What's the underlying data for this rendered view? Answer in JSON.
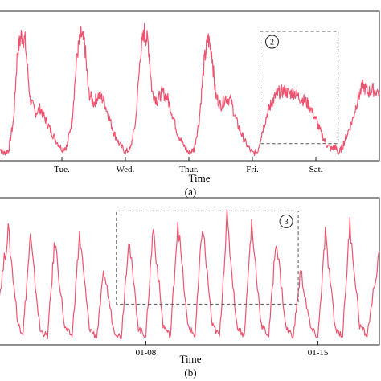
{
  "colors": {
    "series": "#ee5470",
    "frame": "#222222",
    "box": "#555555"
  },
  "chart_data": [
    {
      "type": "line",
      "panel_label": "(a)",
      "xlabel": "Time",
      "ylabel": "",
      "x_tick_labels": [
        "Tue.",
        "Wed.",
        "Thur.",
        "Fri.",
        "Sat."
      ],
      "x_range": [
        0.0,
        6.0
      ],
      "x_tick_positions": [
        1,
        2,
        3,
        4,
        5
      ],
      "ylim": [
        0,
        1
      ],
      "grid": false,
      "series": [
        {
          "x": [
            0.0,
            0.08,
            0.16,
            0.24,
            0.3,
            0.36,
            0.42,
            0.5,
            0.58,
            0.66,
            0.74,
            0.82,
            0.9,
            1.0,
            1.08,
            1.16,
            1.24,
            1.3,
            1.36,
            1.42,
            1.5,
            1.58,
            1.66,
            1.74,
            1.82,
            1.9,
            2.0,
            2.08,
            2.16,
            2.24,
            2.3,
            2.36,
            2.42,
            2.5,
            2.58,
            2.66,
            2.74,
            2.82,
            2.9,
            3.0,
            3.08,
            3.16,
            3.24,
            3.3,
            3.36,
            3.42,
            3.5,
            3.58,
            3.66,
            3.74,
            3.82,
            3.9,
            4.0,
            4.08,
            4.16,
            4.24,
            4.3,
            4.36,
            4.42,
            4.5,
            4.58,
            4.66,
            4.74,
            4.82,
            4.9,
            5.0,
            5.08,
            5.16,
            5.24,
            5.3,
            5.36,
            5.42,
            5.5,
            5.58,
            5.66,
            5.74,
            5.82,
            5.9,
            6.0
          ],
          "y": [
            0.1,
            0.05,
            0.07,
            0.3,
            0.8,
            0.92,
            0.88,
            0.45,
            0.35,
            0.38,
            0.3,
            0.22,
            0.15,
            0.08,
            0.1,
            0.3,
            0.78,
            0.93,
            0.85,
            0.5,
            0.42,
            0.48,
            0.44,
            0.32,
            0.2,
            0.12,
            0.06,
            0.08,
            0.28,
            0.8,
            0.95,
            0.86,
            0.5,
            0.44,
            0.5,
            0.46,
            0.34,
            0.2,
            0.12,
            0.05,
            0.08,
            0.28,
            0.72,
            0.9,
            0.8,
            0.48,
            0.4,
            0.46,
            0.44,
            0.3,
            0.2,
            0.12,
            0.05,
            0.06,
            0.22,
            0.35,
            0.42,
            0.47,
            0.5,
            0.51,
            0.49,
            0.5,
            0.46,
            0.44,
            0.4,
            0.3,
            0.2,
            0.12,
            0.08,
            0.1,
            0.05,
            0.1,
            0.2,
            0.3,
            0.45,
            0.55,
            0.5,
            0.52,
            0.5
          ]
        }
      ],
      "annotation_box": {
        "label": "2",
        "x_range": [
          4.12,
          5.35
        ],
        "y_range": [
          0.12,
          0.95
        ]
      }
    },
    {
      "type": "line",
      "panel_label": "(b)",
      "xlabel": "Time",
      "ylabel": "",
      "x_tick_labels": [
        "01-08",
        "01-15"
      ],
      "x_range": [
        0.0,
        15.5
      ],
      "x_tick_positions": [
        6,
        13
      ],
      "ylim": [
        0,
        1
      ],
      "grid": false,
      "series": [
        {
          "x": [
            0.0,
            0.4,
            0.8,
            1.0,
            1.3,
            1.7,
            2.0,
            2.3,
            2.7,
            3.0,
            3.3,
            3.7,
            4.0,
            4.3,
            4.7,
            5.0,
            5.3,
            5.7,
            6.0,
            6.3,
            6.7,
            7.0,
            7.3,
            7.7,
            8.0,
            8.3,
            8.7,
            9.0,
            9.3,
            9.7,
            10.0,
            10.3,
            10.7,
            11.0,
            11.3,
            11.7,
            12.0,
            12.3,
            12.7,
            13.0,
            13.3,
            13.7,
            14.0,
            14.3,
            14.7,
            15.0,
            15.5
          ],
          "y": [
            0.3,
            0.85,
            0.15,
            0.08,
            0.8,
            0.1,
            0.06,
            0.78,
            0.12,
            0.06,
            0.82,
            0.12,
            0.05,
            0.55,
            0.1,
            0.05,
            0.8,
            0.12,
            0.06,
            0.88,
            0.14,
            0.06,
            0.92,
            0.14,
            0.06,
            0.9,
            0.14,
            0.06,
            0.94,
            0.14,
            0.06,
            0.9,
            0.14,
            0.06,
            0.8,
            0.12,
            0.06,
            0.55,
            0.12,
            0.05,
            0.82,
            0.12,
            0.06,
            0.9,
            0.14,
            0.06,
            0.7
          ]
        }
      ],
      "annotation_box": {
        "label": "3",
        "x_range": [
          4.8,
          12.2
        ],
        "y_range": [
          0.3,
          1.0
        ]
      }
    }
  ]
}
